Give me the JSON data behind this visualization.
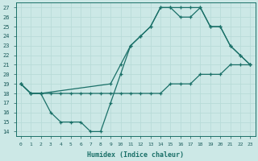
{
  "xlabel": "Humidex (Indice chaleur)",
  "bg_color": "#cce8e6",
  "grid_color": "#b8dbd8",
  "line_color": "#1a7068",
  "xlim": [
    -0.5,
    23.5
  ],
  "ylim": [
    13.5,
    27.5
  ],
  "xticks": [
    0,
    1,
    2,
    3,
    4,
    5,
    6,
    7,
    8,
    9,
    10,
    11,
    12,
    13,
    14,
    15,
    16,
    17,
    18,
    19,
    20,
    21,
    22,
    23
  ],
  "yticks": [
    14,
    15,
    16,
    17,
    18,
    19,
    20,
    21,
    22,
    23,
    24,
    25,
    26,
    27
  ],
  "line1_x": [
    0,
    1,
    2,
    3,
    4,
    5,
    6,
    7,
    8,
    9,
    10,
    11,
    12,
    13,
    14,
    15,
    16,
    17,
    18,
    19,
    20,
    21,
    22,
    23
  ],
  "line1_y": [
    19,
    18,
    18,
    18,
    18,
    18,
    18,
    18,
    18,
    18,
    18,
    18,
    18,
    18,
    18,
    19,
    19,
    19,
    20,
    20,
    20,
    21,
    21,
    21
  ],
  "line2_x": [
    0,
    1,
    2,
    3,
    4,
    5,
    6,
    7,
    8,
    9,
    10,
    11,
    12,
    13,
    14,
    15,
    16,
    17,
    18,
    19,
    20,
    21,
    22,
    23
  ],
  "line2_y": [
    19,
    18,
    18,
    16,
    15,
    15,
    15,
    14,
    14,
    17,
    20,
    23,
    24,
    25,
    27,
    27,
    27,
    27,
    27,
    25,
    25,
    23,
    22,
    21
  ],
  "line3_x": [
    0,
    1,
    2,
    9,
    10,
    11,
    12,
    13,
    14,
    15,
    16,
    17,
    18,
    19,
    20,
    21,
    22,
    23
  ],
  "line3_y": [
    19,
    18,
    18,
    19,
    21,
    23,
    24,
    25,
    27,
    27,
    26,
    26,
    27,
    25,
    25,
    23,
    22,
    21
  ]
}
